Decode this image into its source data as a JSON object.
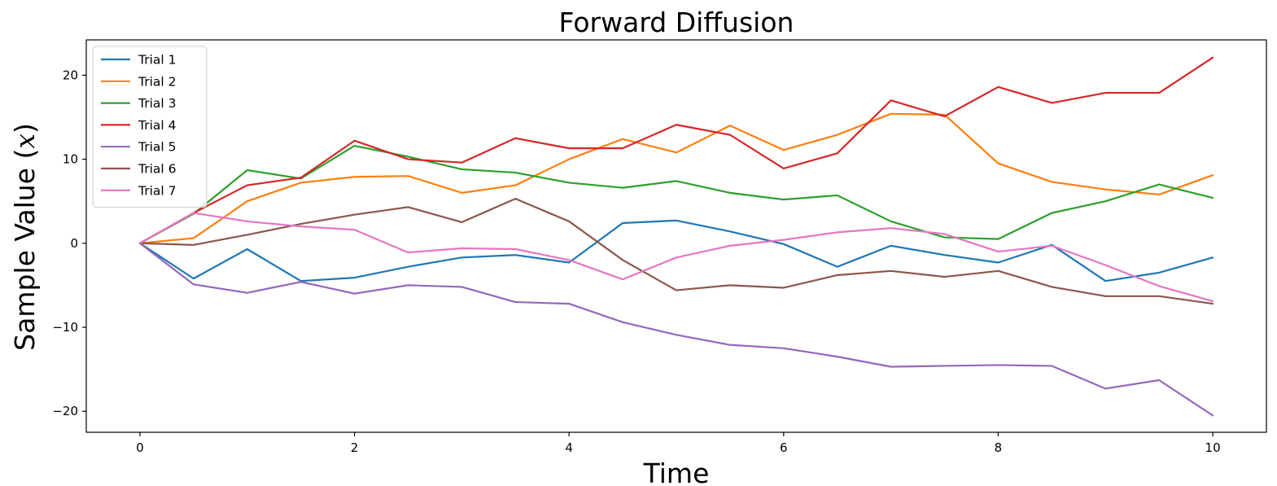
{
  "chart_data": {
    "type": "line",
    "title": "Forward Diffusion",
    "xlabel": "Time",
    "ylabel": "Sample Value (x)",
    "xlim": [
      -0.5,
      10.5
    ],
    "ylim": [
      -22.5,
      24.2
    ],
    "xticks": [
      0,
      2,
      4,
      6,
      8,
      10
    ],
    "xtick_labels": [
      "0",
      "2",
      "4",
      "6",
      "8",
      "10"
    ],
    "yticks": [
      -20,
      -10,
      0,
      10,
      20
    ],
    "ytick_labels": [
      "−20",
      "−10",
      "0",
      "10",
      "20"
    ],
    "grid": false,
    "legend_position": "top-left",
    "series": [
      {
        "name": "Trial 1",
        "color": "#1f77b4",
        "x": [
          0,
          0.5,
          1,
          1.5,
          2,
          2.5,
          3,
          3.5,
          4,
          4.5,
          5,
          5.5,
          6,
          6.5,
          7,
          7.5,
          8,
          8.5,
          9,
          9.5,
          10
        ],
        "y": [
          0,
          -4.2,
          -0.7,
          -4.5,
          -4.1,
          -2.8,
          -1.7,
          -1.4,
          -2.3,
          2.4,
          2.7,
          1.4,
          -0.1,
          -2.8,
          -0.3,
          -1.4,
          -2.3,
          -0.2,
          -4.5,
          -3.5,
          -1.7
        ]
      },
      {
        "name": "Trial 2",
        "color": "#ff7f0e",
        "x": [
          0,
          0.5,
          1,
          1.5,
          2,
          2.5,
          3,
          3.5,
          4,
          4.5,
          5,
          5.5,
          6,
          6.5,
          7,
          7.5,
          8,
          8.5,
          9,
          9.5,
          10
        ],
        "y": [
          0,
          0.6,
          5.0,
          7.2,
          7.9,
          8.0,
          6.0,
          6.9,
          10.0,
          12.4,
          10.8,
          14.0,
          11.1,
          12.9,
          15.4,
          15.3,
          9.5,
          7.3,
          6.4,
          5.8,
          8.1
        ]
      },
      {
        "name": "Trial 3",
        "color": "#2ca02c",
        "x": [
          0,
          0.5,
          1,
          1.5,
          2,
          2.5,
          3,
          3.5,
          4,
          4.5,
          5,
          5.5,
          6,
          6.5,
          7,
          7.5,
          8,
          8.5,
          9,
          9.5,
          10
        ],
        "y": [
          0,
          3.5,
          8.7,
          7.7,
          11.6,
          10.3,
          8.8,
          8.4,
          7.2,
          6.6,
          7.4,
          6.0,
          5.2,
          5.7,
          2.6,
          0.7,
          0.5,
          3.6,
          5.0,
          7.0,
          5.4
        ]
      },
      {
        "name": "Trial 4",
        "color": "#d62728",
        "x": [
          0,
          0.5,
          1,
          1.5,
          2,
          2.5,
          3,
          3.5,
          4,
          4.5,
          5,
          5.5,
          6,
          6.5,
          7,
          7.5,
          8,
          8.5,
          9,
          9.5,
          10
        ],
        "y": [
          0,
          3.6,
          6.9,
          7.8,
          12.2,
          10.0,
          9.6,
          12.5,
          11.3,
          11.3,
          14.1,
          12.9,
          8.9,
          10.7,
          17.0,
          15.1,
          18.6,
          16.7,
          17.9,
          17.9,
          22.1
        ]
      },
      {
        "name": "Trial 5",
        "color": "#9467bd",
        "x": [
          0,
          0.5,
          1,
          1.5,
          2,
          2.5,
          3,
          3.5,
          4,
          4.5,
          5,
          5.5,
          6,
          6.5,
          7,
          7.5,
          8,
          8.5,
          9,
          9.5,
          10
        ],
        "y": [
          0,
          -4.9,
          -5.9,
          -4.6,
          -6.0,
          -5.0,
          -5.2,
          -7.0,
          -7.2,
          -9.4,
          -10.9,
          -12.1,
          -12.5,
          -13.5,
          -14.7,
          -14.6,
          -14.5,
          -14.6,
          -17.3,
          -16.3,
          -20.5
        ]
      },
      {
        "name": "Trial 6",
        "color": "#8c564b",
        "x": [
          0,
          0.5,
          1,
          1.5,
          2,
          2.5,
          3,
          3.5,
          4,
          4.5,
          5,
          5.5,
          6,
          6.5,
          7,
          7.5,
          8,
          8.5,
          9,
          9.5,
          10
        ],
        "y": [
          0,
          -0.2,
          1.0,
          2.3,
          3.4,
          4.3,
          2.5,
          5.3,
          2.6,
          -2.0,
          -5.6,
          -5.0,
          -5.3,
          -3.8,
          -3.3,
          -4.0,
          -3.3,
          -5.2,
          -6.3,
          -6.3,
          -7.2
        ]
      },
      {
        "name": "Trial 7",
        "color": "#e377c2",
        "x": [
          0,
          0.5,
          1,
          1.5,
          2,
          2.5,
          3,
          3.5,
          4,
          4.5,
          5,
          5.5,
          6,
          6.5,
          7,
          7.5,
          8,
          8.5,
          9,
          9.5,
          10
        ],
        "y": [
          0,
          3.6,
          2.6,
          2.0,
          1.6,
          -1.1,
          -0.6,
          -0.7,
          -2.0,
          -4.3,
          -1.7,
          -0.3,
          0.4,
          1.3,
          1.8,
          1.1,
          -1.0,
          -0.3,
          -2.6,
          -5.1,
          -6.9
        ]
      }
    ]
  }
}
